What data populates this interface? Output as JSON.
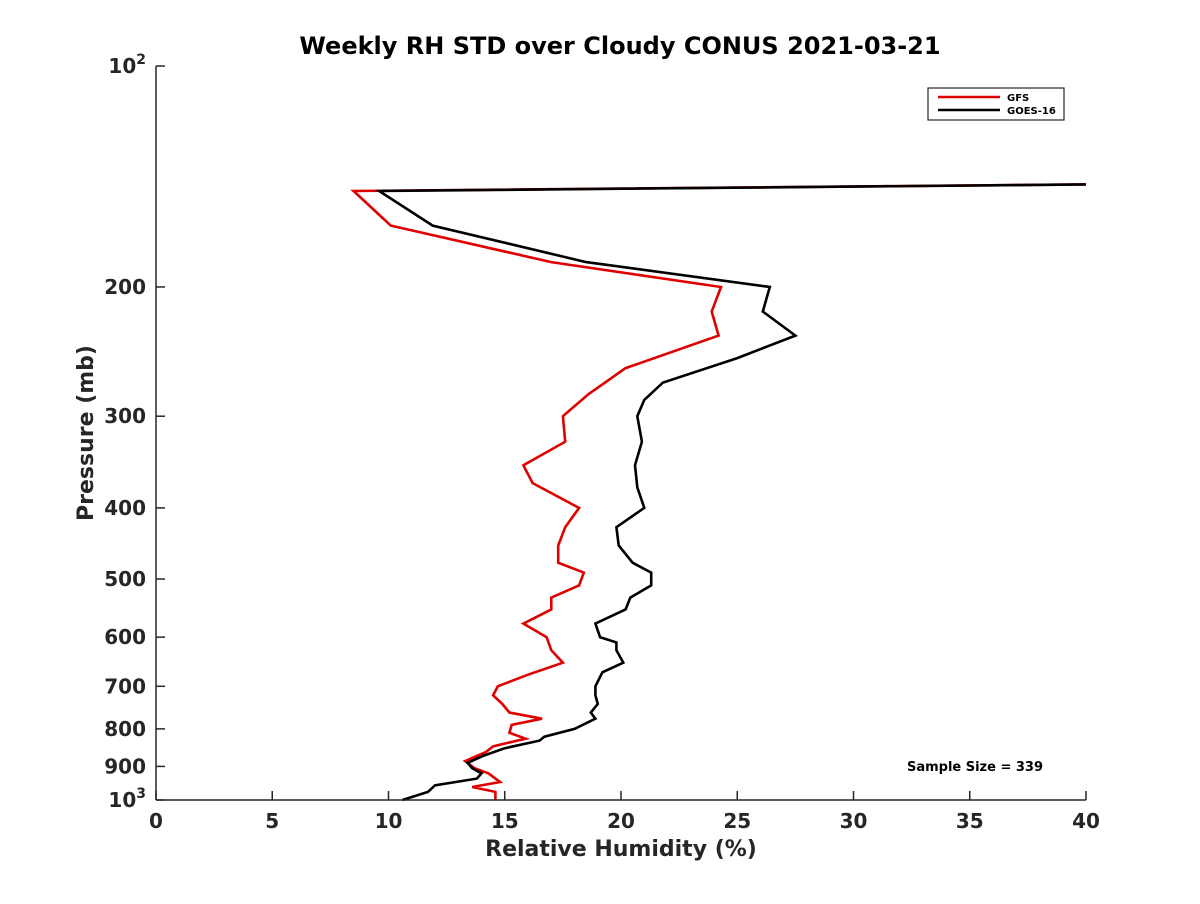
{
  "chart_data": {
    "type": "line",
    "title": "Weekly RH STD over Cloudy CONUS 2021-03-21",
    "xlabel": "Relative Humidity (%)",
    "ylabel": "Pressure (mb)",
    "xlim": [
      0,
      40
    ],
    "ylim": [
      100,
      1000
    ],
    "y_scale": "log",
    "y_reversed": true,
    "grid": false,
    "legend_position": "top-right",
    "x_ticks": [
      0,
      5,
      10,
      15,
      20,
      25,
      30,
      35,
      40
    ],
    "x_tick_labels": [
      "0",
      "5",
      "10",
      "15",
      "20",
      "25",
      "30",
      "35",
      "40"
    ],
    "y_ticks": [
      100,
      200,
      300,
      400,
      500,
      600,
      700,
      800,
      900,
      1000
    ],
    "y_tick_labels": [
      {
        "base": "10",
        "exp": "2"
      },
      {
        "base": "200",
        "exp": ""
      },
      {
        "base": "300",
        "exp": ""
      },
      {
        "base": "400",
        "exp": ""
      },
      {
        "base": "500",
        "exp": ""
      },
      {
        "base": "600",
        "exp": ""
      },
      {
        "base": "700",
        "exp": ""
      },
      {
        "base": "800",
        "exp": ""
      },
      {
        "base": "900",
        "exp": ""
      },
      {
        "base": "10",
        "exp": "3"
      }
    ],
    "annotation": "Sample Size = 339",
    "series": [
      {
        "name": "GFS",
        "color": "#e00000",
        "points": [
          [
            40.0,
            145
          ],
          [
            8.5,
            148
          ],
          [
            10.1,
            165
          ],
          [
            17.0,
            185
          ],
          [
            24.3,
            200
          ],
          [
            23.9,
            216
          ],
          [
            24.2,
            233
          ],
          [
            20.2,
            258
          ],
          [
            18.6,
            280
          ],
          [
            17.5,
            300
          ],
          [
            17.6,
            325
          ],
          [
            15.8,
            350
          ],
          [
            16.2,
            370
          ],
          [
            18.2,
            400
          ],
          [
            17.6,
            425
          ],
          [
            17.3,
            450
          ],
          [
            17.3,
            475
          ],
          [
            18.4,
            490
          ],
          [
            18.2,
            510
          ],
          [
            17.0,
            530
          ],
          [
            17.0,
            550
          ],
          [
            15.8,
            575
          ],
          [
            16.8,
            600
          ],
          [
            17.0,
            625
          ],
          [
            17.5,
            650
          ],
          [
            16.0,
            675
          ],
          [
            14.7,
            700
          ],
          [
            14.5,
            720
          ],
          [
            14.9,
            740
          ],
          [
            15.2,
            760
          ],
          [
            16.6,
            775
          ],
          [
            15.3,
            790
          ],
          [
            15.2,
            810
          ],
          [
            15.9,
            825
          ],
          [
            14.5,
            845
          ],
          [
            14.2,
            860
          ],
          [
            13.3,
            885
          ],
          [
            13.7,
            905
          ],
          [
            14.3,
            920
          ],
          [
            14.8,
            945
          ],
          [
            13.6,
            960
          ],
          [
            14.6,
            975
          ],
          [
            14.6,
            1000
          ]
        ]
      },
      {
        "name": "GOES-16",
        "color": "#000000",
        "points": [
          [
            40.0,
            145
          ],
          [
            9.6,
            148
          ],
          [
            11.9,
            165
          ],
          [
            18.5,
            185
          ],
          [
            26.4,
            200
          ],
          [
            26.1,
            216
          ],
          [
            27.5,
            233
          ],
          [
            25.0,
            250
          ],
          [
            21.8,
            270
          ],
          [
            21.0,
            285
          ],
          [
            20.7,
            300
          ],
          [
            20.9,
            325
          ],
          [
            20.6,
            350
          ],
          [
            20.7,
            375
          ],
          [
            21.0,
            400
          ],
          [
            19.8,
            425
          ],
          [
            19.9,
            450
          ],
          [
            20.5,
            475
          ],
          [
            21.3,
            490
          ],
          [
            21.3,
            510
          ],
          [
            20.4,
            530
          ],
          [
            20.2,
            550
          ],
          [
            18.9,
            575
          ],
          [
            19.1,
            600
          ],
          [
            19.8,
            610
          ],
          [
            19.8,
            625
          ],
          [
            20.1,
            650
          ],
          [
            19.2,
            670
          ],
          [
            18.9,
            700
          ],
          [
            18.9,
            720
          ],
          [
            19.0,
            740
          ],
          [
            18.7,
            760
          ],
          [
            18.9,
            775
          ],
          [
            18.0,
            800
          ],
          [
            16.7,
            820
          ],
          [
            16.5,
            830
          ],
          [
            15.0,
            850
          ],
          [
            14.1,
            870
          ],
          [
            13.4,
            890
          ],
          [
            13.6,
            905
          ],
          [
            14.0,
            920
          ],
          [
            13.8,
            935
          ],
          [
            12.0,
            955
          ],
          [
            11.7,
            975
          ],
          [
            10.6,
            1000
          ]
        ]
      }
    ]
  }
}
